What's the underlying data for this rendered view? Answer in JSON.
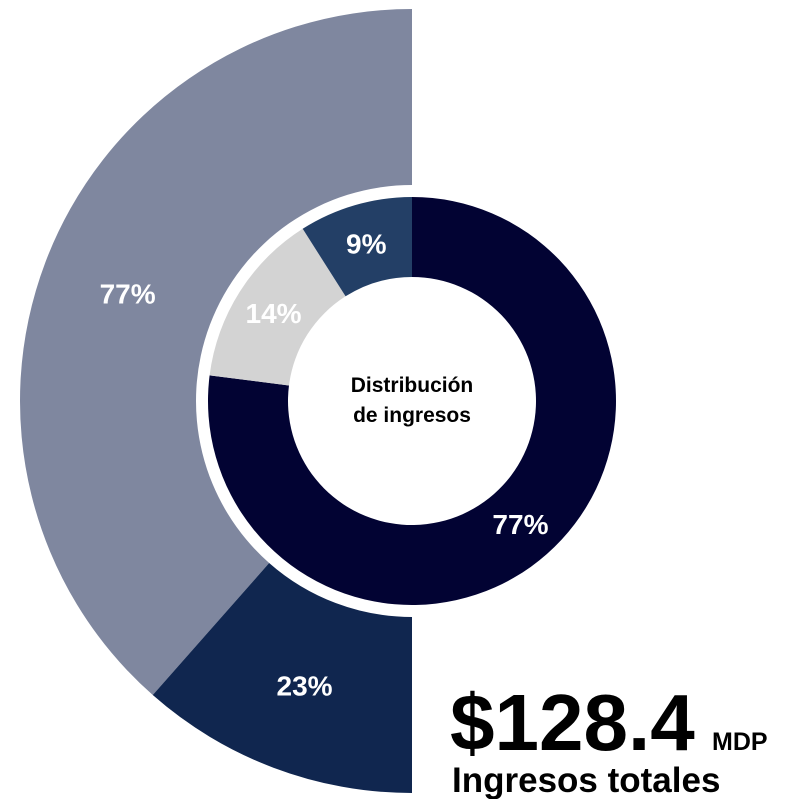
{
  "chart_data": {
    "type": "donut",
    "center_label": [
      "Distribución",
      "de ingresos"
    ],
    "rings": [
      {
        "values": [
          77,
          23
        ],
        "value_labels": [
          "77%",
          "23%"
        ],
        "colors": [
          "#7f879f",
          "#10264f"
        ],
        "half": true,
        "direction": "counterclockwise"
      },
      {
        "values": [
          77,
          14,
          9
        ],
        "value_labels": [
          "77%",
          "14%",
          "9%"
        ],
        "colors": [
          "#020333",
          "#d3d3d3",
          "#233f66"
        ],
        "half": false,
        "direction": "clockwise"
      }
    ],
    "total": {
      "value_label": "$128.4",
      "unit": "MDP",
      "label": "Ingresos totales"
    }
  }
}
